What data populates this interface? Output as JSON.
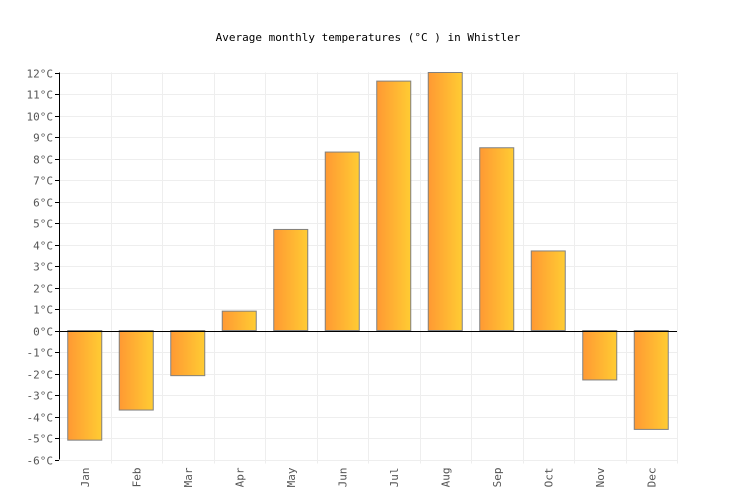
{
  "chart_data": {
    "type": "bar",
    "title": "Average monthly temperatures (°C ) in Whistler",
    "xlabel": "",
    "ylabel": "",
    "categories": [
      "Jan",
      "Feb",
      "Mar",
      "Apr",
      "May",
      "Jun",
      "Jul",
      "Aug",
      "Sep",
      "Oct",
      "Nov",
      "Dec"
    ],
    "values": [
      -5.1,
      -3.7,
      -2.1,
      0.9,
      4.7,
      8.3,
      11.6,
      12.0,
      8.5,
      3.7,
      -2.3,
      -4.6
    ],
    "ylim": [
      -6,
      12
    ],
    "y_ticks": [
      "12°C",
      "11°C",
      "10°C",
      "9°C",
      "8°C",
      "7°C",
      "6°C",
      "5°C",
      "4°C",
      "3°C",
      "2°C",
      "1°C",
      "0°C",
      "-1°C",
      "-2°C",
      "-3°C",
      "-4°C",
      "-5°C",
      "-6°C"
    ],
    "grid": true,
    "legend": "none",
    "colors": {
      "bar_left": "#ff9933",
      "bar_right": "#ffcc33",
      "bar_border": "#808080",
      "grid": "#eeeeee",
      "axis": "#000000"
    }
  }
}
